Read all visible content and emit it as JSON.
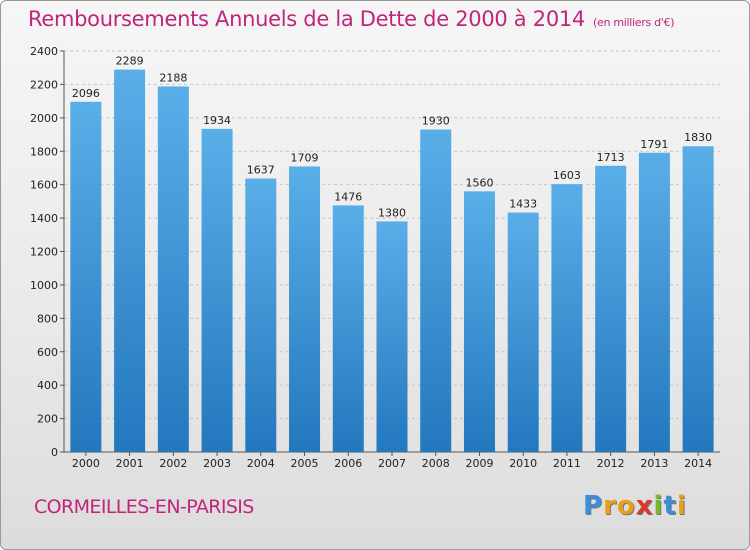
{
  "chart_data": {
    "type": "bar",
    "title": "Remboursements Annuels de la Dette de 2000 à 2014",
    "subtitle": "(en milliers d'€)",
    "categories": [
      "2000",
      "2001",
      "2002",
      "2003",
      "2004",
      "2005",
      "2006",
      "2007",
      "2008",
      "2009",
      "2010",
      "2011",
      "2012",
      "2013",
      "2014"
    ],
    "values": [
      2096,
      2289,
      2188,
      1934,
      1637,
      1709,
      1476,
      1380,
      1930,
      1560,
      1433,
      1603,
      1713,
      1791,
      1830
    ],
    "xlabel": "",
    "ylabel": "",
    "ylim": [
      0,
      2400
    ],
    "yticks": [
      0,
      200,
      400,
      600,
      800,
      1000,
      1200,
      1400,
      1600,
      1800,
      2000,
      2200,
      2400
    ],
    "grid": true,
    "bar_color_top": "#5aaee8",
    "bar_color_bottom": "#2378be"
  },
  "footer": {
    "city": "CORMEILLES-EN-PARISIS",
    "logo_letters": [
      "P",
      "r",
      "o",
      "x",
      "i",
      "t",
      "i"
    ],
    "logo_colors": [
      "#3a8fd6",
      "#e8a01a",
      "#e8a01a",
      "#d63a2a",
      "#77b82a",
      "#3a8fd6",
      "#e8a01a"
    ]
  }
}
